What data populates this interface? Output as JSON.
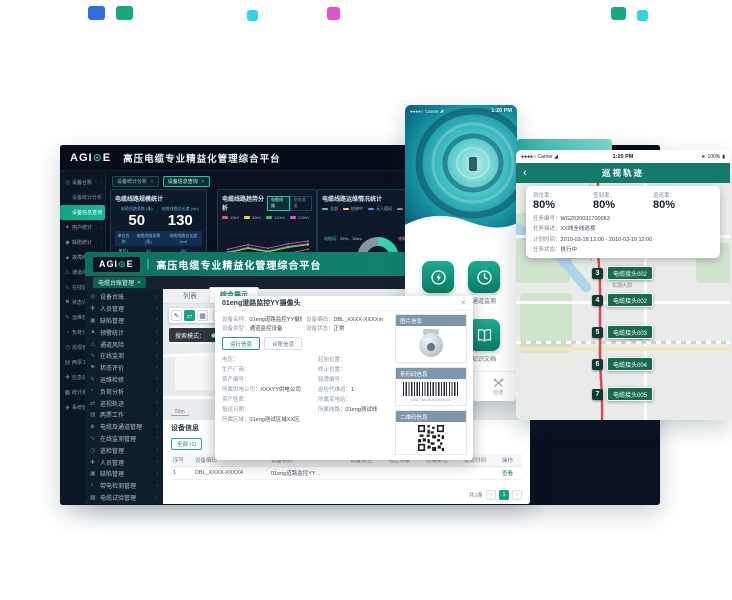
{
  "decor_chips": [
    {
      "color": "#2f6de0"
    },
    {
      "color": "#16a97e"
    },
    {
      "color": "#2fd5e6"
    },
    {
      "color": "#e051ce"
    },
    {
      "color": "#16a97e"
    },
    {
      "color": "#2fd5e6"
    }
  ],
  "dashboard": {
    "brand": {
      "a": "AGI",
      "o": "⊙",
      "b": "E"
    },
    "title": "高压电缆专业精益化管理综合平台",
    "close_glyph": "✕",
    "chevron": "›",
    "sidebar": [
      {
        "icon": "◎",
        "label": "设备台账",
        "cls": "open"
      },
      {
        "icon": "",
        "label": "设备统计分析",
        "cls": "sub"
      },
      {
        "icon": "",
        "label": "设备信息查询",
        "cls": "sub active"
      },
      {
        "icon": "✦",
        "label": "用户统计"
      },
      {
        "icon": "◆",
        "label": "缺陷统计"
      },
      {
        "icon": "▲",
        "label": "故障统计"
      },
      {
        "icon": "⚠",
        "label": "通道风险"
      },
      {
        "icon": "∿",
        "label": "在线监测"
      },
      {
        "icon": "⚑",
        "label": "状态评价"
      },
      {
        "icon": "✎",
        "label": "运维检修"
      },
      {
        "icon": "◔",
        "label": "负荷分析"
      },
      {
        "icon": "◷",
        "label": "巡视管理"
      },
      {
        "icon": "▤",
        "label": "两票工作"
      },
      {
        "icon": "✚",
        "label": "应急处置"
      },
      {
        "icon": "▦",
        "label": "统计报表"
      },
      {
        "icon": "◈",
        "label": "系统管理"
      }
    ],
    "tabs": [
      {
        "label": "设备统计分析"
      },
      {
        "label": "设备信息查询",
        "cls": "active"
      }
    ],
    "kpi": {
      "title": "电缆线路规模统计",
      "metrics": [
        {
          "label": "电缆线路条数 (条)",
          "value": "50"
        },
        {
          "label": "电缆线路总长度 (km)",
          "value": "130"
        }
      ],
      "headers": [
        "单位名称",
        "电缆线路条数 (条)",
        "电缆线路总长度 (km)"
      ],
      "rows": [
        [
          "单位1",
          "10",
          "130"
        ],
        [
          "单位2",
          "10",
          "130"
        ],
        [
          "单位3",
          "10",
          "130"
        ],
        [
          "单位4",
          "10",
          "130"
        ]
      ]
    },
    "trend": {
      "title": "电缆线路趋势分析",
      "toggles": [
        {
          "label": "电缆线路",
          "cls": "on"
        },
        {
          "label": "电缆通道"
        }
      ]
    },
    "donut": {
      "title": "电缆线路运维情况统计",
      "legend": [
        {
          "label": "全部",
          "color": "#35d9b0"
        },
        {
          "label": "检修中",
          "color": "#f6d13e"
        },
        {
          "label": "无人值班",
          "color": "#3aa7f0"
        },
        {
          "label": "退役",
          "color": "#8a97a5"
        }
      ],
      "callouts": [
        {
          "label": "电缆段：",
          "value": "25%，10km",
          "color": "#35d9b0"
        },
        {
          "label": "终端：",
          "value": "25%，10km",
          "color": "#f6d13e"
        },
        {
          "label": "无人值班：",
          "value": "25%，10km",
          "color": "#3aa7f0"
        },
        {
          "label": "通道：",
          "value": "25%，10km",
          "color": "#8a97a5"
        }
      ]
    }
  },
  "chart_data": [
    {
      "type": "line",
      "title": "电缆线路趋势分析",
      "x": [
        2016,
        2017,
        2018,
        2019,
        2020
      ],
      "xtick_labels": [
        "2016",
        "2017",
        "2018",
        "2019",
        "2020 年"
      ],
      "xlabel": "年",
      "ylabel": "",
      "ylim": [
        0,
        40
      ],
      "grid": true,
      "legend_position": "top",
      "series": [
        {
          "name": "10kV",
          "color": "#e85565",
          "values": [
            12,
            18,
            10,
            17,
            22
          ]
        },
        {
          "name": "35kV",
          "color": "#f6d13e",
          "values": [
            18,
            23,
            19,
            24,
            27
          ]
        },
        {
          "name": "110kV",
          "color": "#2fbe74",
          "values": [
            19,
            24,
            20,
            25,
            28
          ]
        },
        {
          "name": "220kV",
          "color": "#d94fd4",
          "values": [
            22,
            27,
            23,
            28,
            31
          ]
        }
      ]
    },
    {
      "type": "pie",
      "donut": true,
      "title": "电缆线路运维情况统计",
      "labels": [
        "全部",
        "检修中",
        "无人值班",
        "退役"
      ],
      "values": [
        25,
        25,
        25,
        25
      ],
      "colors": [
        "#35d9b0",
        "#f6d13e",
        "#3aa7f0",
        "#8a97a5"
      ]
    }
  ],
  "webapp": {
    "brand": {
      "a": "AGI",
      "o": "⊙",
      "b": "E"
    },
    "divider": "|",
    "title": "高压电缆专业精益化管理综合平台",
    "nav_chip": "电缆台账管理",
    "close_glyph": "✕",
    "chevron": "‹",
    "sidebar": [
      {
        "icon": "◎",
        "label": "设备台账"
      },
      {
        "icon": "✚",
        "label": "人员管理"
      },
      {
        "icon": "▣",
        "label": "缺陷管理"
      },
      {
        "icon": "▲",
        "label": "预警统计"
      },
      {
        "icon": "⚠",
        "label": "通道风险"
      },
      {
        "icon": "∿",
        "label": "在线监测"
      },
      {
        "icon": "⚑",
        "label": "状态评价"
      },
      {
        "icon": "✎",
        "label": "运维检修"
      },
      {
        "icon": "◔",
        "label": "负荷分析"
      },
      {
        "icon": "⇄",
        "label": "巡视轨迹"
      },
      {
        "icon": "▤",
        "label": "两票工作"
      },
      {
        "icon": "◈",
        "label": "电缆及通道管理"
      },
      {
        "icon": "∿",
        "label": "在线监测管理"
      },
      {
        "icon": "◷",
        "label": "巡检管理"
      },
      {
        "icon": "✚",
        "label": "人员管理"
      },
      {
        "icon": "▣",
        "label": "缺陷管理"
      },
      {
        "icon": "⚡",
        "label": "带电检测管理"
      },
      {
        "icon": "▦",
        "label": "电缆试验管理"
      }
    ],
    "tabs": [
      {
        "label": "列表"
      },
      {
        "label": "综合展示",
        "cls": "active"
      }
    ],
    "toolbar": {
      "edit_glyph": "✎",
      "shape_glyph": "▱",
      "grid_glyph": "▦",
      "search_placeholder": "输入关键字",
      "mag": "⌕",
      "zoom_in": "+",
      "zoom_out": "−",
      "mode_label": "搜索模式：",
      "modes": [
        {
          "label": "圆形",
          "cls": "on"
        },
        {
          "label": "多边形"
        }
      ],
      "scale": "50m"
    },
    "modal": {
      "title": "01eng道路监控YY摄像头",
      "top_fields": [
        {
          "label": "设备名称：",
          "value": "01eng道路监控YY摄像头"
        },
        {
          "label": "设备编码：",
          "value": "DBL_XXXX-XXXXm"
        },
        {
          "label": "设备类型：",
          "value": "通道监控设备"
        },
        {
          "label": "设备状态：",
          "value": "正常"
        }
      ],
      "tabs": [
        {
          "label": "运行信息",
          "cls": "on"
        },
        {
          "label": "台账信息"
        }
      ],
      "left_fields": [
        {
          "label": "电压：",
          "value": ""
        },
        {
          "label": "生产厂商：",
          "value": ""
        },
        {
          "label": "资产编号：",
          "value": ""
        },
        {
          "label": "所属供电公司：",
          "value": "XXXYY供电公司"
        },
        {
          "label": "资产性质：",
          "value": ""
        },
        {
          "label": "投运日期：",
          "value": ""
        },
        {
          "label": "所属区域：",
          "value": "01eng测试区域XX区"
        }
      ],
      "right_fields": [
        {
          "label": "起始位置：",
          "value": ""
        },
        {
          "label": "终止位置：",
          "value": ""
        },
        {
          "label": "铭牌编号：",
          "value": ""
        },
        {
          "label": "巡检代维班：",
          "value": "1"
        },
        {
          "label": "所属变电站：",
          "value": ""
        },
        {
          "label": "所属线路：",
          "value": "01eng测试线"
        }
      ],
      "panels": {
        "photo": "图片信息",
        "barcode": "条形码信息",
        "qrcode": "二维码信息"
      },
      "barcode_caption": "DBL_8A78-XXXXXXX"
    },
    "device_table": {
      "title": "设备信息",
      "filter": "全部 (1)",
      "headers": [
        "序号",
        "设备编码",
        "设备名称",
        "设备类型",
        "电压等级",
        "所属单位",
        "投运时间",
        "操作"
      ],
      "rows": [
        [
          "1",
          "DBL_XXXX-XXXX4",
          "01eng道路监控YY…",
          "",
          "",
          "",
          "",
          "查看"
        ]
      ],
      "total": "共1条",
      "prev": "‹",
      "page": "1",
      "next": "›"
    }
  },
  "phone1": {
    "status": {
      "dots": "●●●●○",
      "carrier": "Carrier",
      "signal": "◢",
      "time": "1:20 PM"
    },
    "apps": [
      {
        "label": "电缆监测"
      },
      {
        "label": "通道监测"
      },
      {
        "label": "设备信息"
      },
      {
        "label": "知识文档"
      }
    ],
    "nav": [
      {
        "label": "首页",
        "cls": "active"
      },
      {
        "label": "巡视"
      },
      {
        "label": "检修"
      }
    ]
  },
  "phone2": {
    "status": {
      "dots": "●●●●○",
      "carrier": "Carrier",
      "signal": "◢",
      "time": "1:20 PM",
      "loc": "➤",
      "battery": "100%",
      "batt_icon": "▮"
    },
    "back": "‹",
    "header": "巡视轨迹",
    "stats": [
      {
        "label": "到位率：",
        "value": "80%"
      },
      {
        "label": "签到率：",
        "value": "80%"
      },
      {
        "label": "返巡率：",
        "value": "80%"
      }
    ],
    "info": [
      {
        "label": "任务编号：",
        "value": "WG2020031700063"
      },
      {
        "label": "任务描述：",
        "value": "XX线全线巡视"
      },
      {
        "label": "计划时间：",
        "value": "2010-03-18 12:00 - 2010-03-19 12:00",
        "cls": "dates"
      },
      {
        "label": "任务状态：",
        "value": "执行中"
      }
    ],
    "streets": [
      "亚洲路",
      "东湖大郡",
      "中新大道东"
    ],
    "markers": [
      {
        "n": "3",
        "label": "电缆接头002"
      },
      {
        "n": "4",
        "label": "电缆接头002"
      },
      {
        "n": "5",
        "label": "电缆接头003"
      },
      {
        "n": "6",
        "label": "电缆接头004"
      },
      {
        "n": "7",
        "label": "电缆接头005"
      }
    ]
  }
}
